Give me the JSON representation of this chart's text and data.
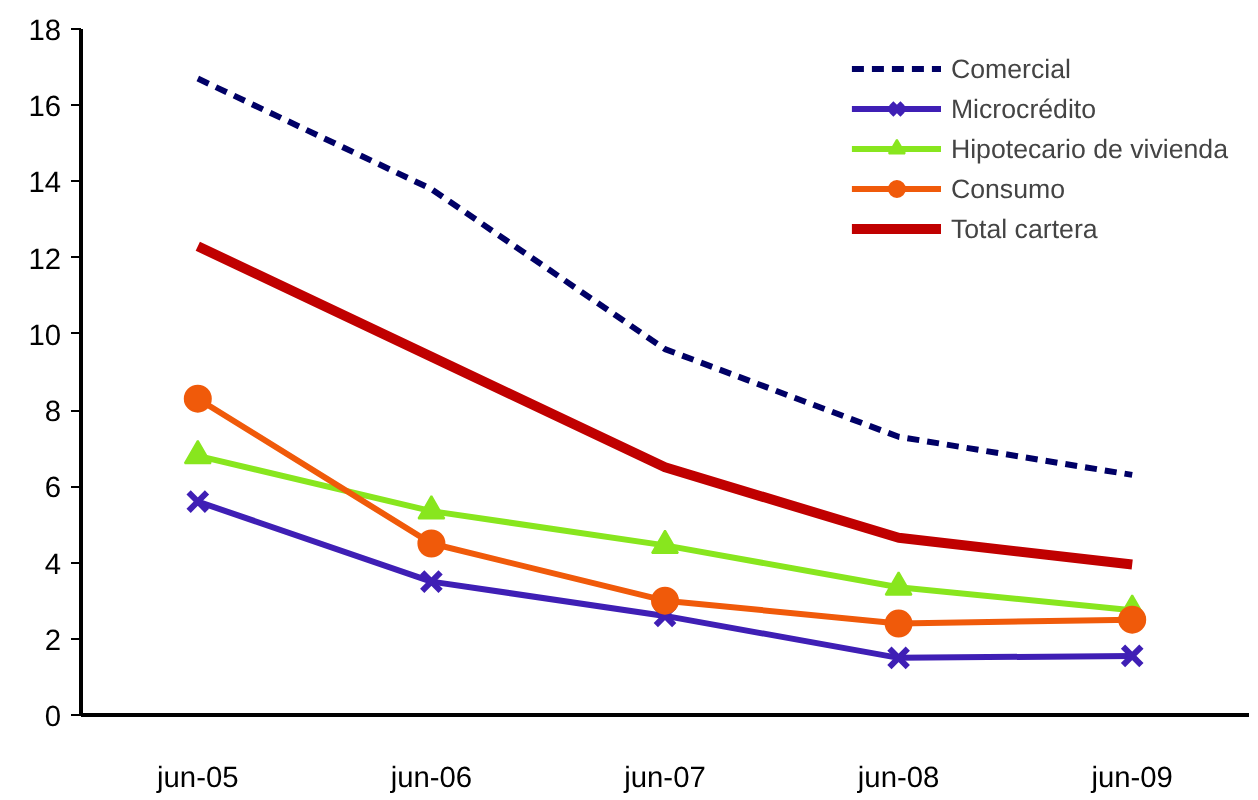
{
  "chart_data": {
    "type": "line",
    "categories": [
      "jun-05",
      "jun-06",
      "jun-07",
      "jun-08",
      "jun-09"
    ],
    "series": [
      {
        "name": "Comercial",
        "color": "#000066",
        "line_style": "dashed",
        "marker": "none",
        "values": [
          16.7,
          13.8,
          9.6,
          7.3,
          6.3
        ]
      },
      {
        "name": "Microcrédito",
        "color": "#3f1fb5",
        "line_style": "solid",
        "marker": "cross",
        "values": [
          5.6,
          3.5,
          2.6,
          1.5,
          1.55
        ]
      },
      {
        "name": "Hipotecario de vivienda",
        "color": "#88e61e",
        "line_style": "solid",
        "marker": "triangle",
        "values": [
          6.8,
          5.35,
          4.45,
          3.35,
          2.75
        ]
      },
      {
        "name": "Consumo",
        "color": "#f05a0a",
        "line_style": "solid",
        "marker": "circle",
        "values": [
          8.3,
          4.5,
          3.0,
          2.4,
          2.5
        ]
      },
      {
        "name": "Total cartera",
        "color": "#c00000",
        "line_style": "solid",
        "marker": "none",
        "values": [
          12.3,
          9.4,
          6.5,
          4.65,
          3.95
        ]
      }
    ],
    "ylim": [
      0,
      18
    ],
    "yticks": [
      0,
      2,
      4,
      6,
      8,
      10,
      12,
      14,
      16,
      18
    ],
    "grid": false,
    "legend": "top right"
  }
}
